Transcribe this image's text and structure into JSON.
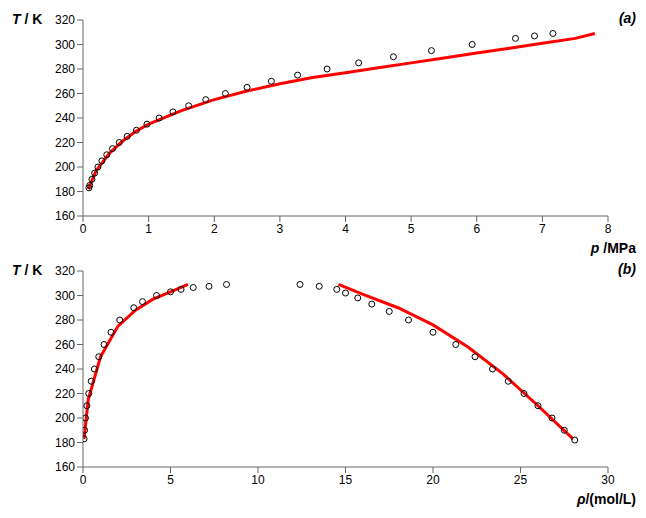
{
  "chart_data": [
    {
      "type": "scatter",
      "title": "(a)",
      "xlabel": "p /MPa",
      "ylabel": "T / K",
      "xlim": [
        0,
        8
      ],
      "ylim": [
        160,
        320
      ],
      "xticks": [
        0,
        1,
        2,
        3,
        4,
        5,
        6,
        7,
        8
      ],
      "yticks": [
        160,
        180,
        200,
        220,
        240,
        260,
        280,
        300,
        320
      ],
      "grid": false,
      "series": [
        {
          "type": "scatter",
          "color": "#000000",
          "marker": "circle",
          "x": [
            0.09,
            0.103,
            0.136,
            0.177,
            0.227,
            0.288,
            0.362,
            0.449,
            0.553,
            0.673,
            0.814,
            0.975,
            1.16,
            1.37,
            1.61,
            1.87,
            2.17,
            2.5,
            2.87,
            3.27,
            3.72,
            4.2,
            4.73,
            5.31,
            5.93,
            6.59,
            6.88,
            7.16
          ],
          "y": [
            183,
            185,
            190,
            195,
            200,
            205,
            210,
            215,
            220,
            225,
            230,
            235,
            240,
            245,
            250,
            255,
            260,
            265,
            270,
            275,
            280,
            285,
            290,
            295,
            300,
            305,
            307,
            309
          ]
        },
        {
          "type": "line",
          "color": "#ff0000",
          "line_style": "solid",
          "x": [
            0.08,
            0.2,
            0.4,
            0.6,
            0.8,
            1,
            1.5,
            2,
            2.5,
            3,
            3.5,
            4,
            4.5,
            5,
            5.5,
            6,
            6.5,
            7,
            7.5,
            7.8
          ],
          "y": [
            182,
            197,
            211,
            221,
            229,
            235,
            246,
            255,
            262,
            268,
            273,
            277,
            281,
            285,
            289,
            293,
            297,
            301,
            305,
            309
          ]
        }
      ]
    },
    {
      "type": "scatter",
      "title": "(b)",
      "xlabel": "ρ/(mol/L)",
      "ylabel": "T / K",
      "xlim": [
        0,
        30
      ],
      "ylim": [
        160,
        320
      ],
      "xticks": [
        0,
        5,
        10,
        15,
        20,
        25,
        30
      ],
      "yticks": [
        160,
        180,
        200,
        220,
        240,
        260,
        280,
        300,
        320
      ],
      "grid": false,
      "series": [
        {
          "type": "scatter",
          "color": "#000000",
          "marker": "circle",
          "x": [
            0.06,
            0.09,
            0.14,
            0.22,
            0.33,
            0.47,
            0.65,
            0.9,
            1.2,
            1.6,
            2.1,
            2.9,
            3.4,
            4.2,
            5.0,
            5.6,
            6.3,
            7.2,
            8.2
          ],
          "y": [
            183,
            190,
            200,
            210,
            220,
            230,
            240,
            250,
            260,
            270,
            280,
            290,
            295,
            300,
            303,
            305,
            306.5,
            307.5,
            309
          ]
        },
        {
          "type": "scatter",
          "color": "#000000",
          "marker": "circle",
          "x": [
            12.4,
            13.5,
            14.5,
            15.0,
            15.7,
            16.5,
            17.5,
            18.6,
            20.0,
            21.3,
            22.4,
            23.4,
            24.3,
            25.2,
            26.0,
            26.8,
            27.5,
            28.1
          ],
          "y": [
            309,
            307.5,
            305,
            302,
            298,
            293,
            287,
            280,
            270,
            260,
            250,
            240,
            230,
            220,
            210,
            200,
            190,
            182
          ]
        },
        {
          "type": "line",
          "color": "#ff0000",
          "line_style": "solid",
          "x": [
            0.06,
            0.3,
            1,
            2,
            3,
            4,
            5,
            6
          ],
          "y": [
            183,
            215,
            250,
            275,
            288,
            297,
            303,
            309
          ]
        },
        {
          "type": "line",
          "color": "#ff0000",
          "line_style": "solid",
          "x": [
            14.6,
            16,
            18,
            20,
            22,
            24,
            26,
            28
          ],
          "y": [
            309,
            301,
            290,
            276,
            258,
            236,
            210,
            183
          ]
        }
      ]
    }
  ]
}
